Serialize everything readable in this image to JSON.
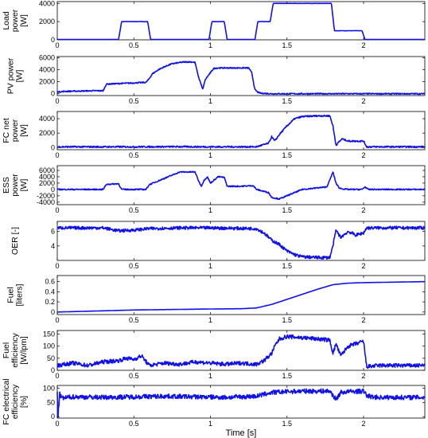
{
  "chart_data": [
    {
      "type": "line",
      "ylabel": [
        "Load",
        "power",
        "[W]"
      ],
      "xlim": [
        0,
        2.4
      ],
      "ylim": [
        0,
        4200
      ],
      "yticks": [
        0,
        2000,
        4000
      ],
      "ytick_labels": [
        "0",
        "2000",
        "4000"
      ],
      "xticks": [
        0,
        0.5,
        1,
        1.5,
        2
      ],
      "xtick_labels": [
        "0",
        "0.5",
        "1",
        "1.5",
        "2"
      ],
      "color": "#1010ee",
      "series": [
        {
          "x": [
            0,
            0.4,
            0.42,
            0.59,
            0.61,
            0.99,
            1.01,
            1.09,
            1.11,
            1.29,
            1.31,
            1.39,
            1.41,
            1.79,
            1.81,
            1.99,
            2.01,
            2.4
          ],
          "y": [
            0,
            0,
            2000,
            2000,
            0,
            0,
            2000,
            2000,
            0,
            0,
            2000,
            2000,
            4000,
            4000,
            1000,
            1000,
            0,
            0
          ]
        }
      ]
    },
    {
      "type": "line",
      "ylabel": [
        "PV power",
        "[W]"
      ],
      "xlim": [
        0,
        2.4
      ],
      "ylim": [
        -300,
        6200
      ],
      "yticks": [
        0,
        2000,
        4000,
        6000
      ],
      "ytick_labels": [
        "0",
        "2000",
        "4000",
        "6000"
      ],
      "xticks": [
        0,
        0.5,
        1,
        1.5,
        2
      ],
      "xtick_labels": [
        "0",
        "0.5",
        "1",
        "1.5",
        "2"
      ],
      "color": "#1010ee",
      "series": [
        {
          "x": [
            0,
            0.05,
            0.25,
            0.3,
            0.32,
            0.4,
            0.5,
            0.58,
            0.6,
            0.62,
            0.66,
            0.7,
            0.75,
            0.8,
            0.83,
            0.88,
            0.9,
            0.92,
            0.94,
            0.95,
            0.96,
            0.97,
            1.0,
            1.02,
            1.05,
            1.1,
            1.15,
            1.2,
            1.25,
            1.27,
            1.29,
            1.31,
            1.33,
            1.4,
            2.4
          ],
          "y": [
            300,
            400,
            500,
            500,
            1600,
            1700,
            1800,
            1900,
            2500,
            3300,
            4000,
            4500,
            5000,
            5200,
            5300,
            5300,
            5200,
            3000,
            1500,
            700,
            1800,
            2500,
            3500,
            4200,
            4300,
            4300,
            4300,
            4300,
            4300,
            3500,
            700,
            250,
            80,
            0,
            0
          ]
        }
      ]
    },
    {
      "type": "line",
      "ylabel": [
        "FC net",
        "power",
        "[W]"
      ],
      "xlim": [
        0,
        2.4
      ],
      "ylim": [
        -300,
        5000
      ],
      "yticks": [
        0,
        2000,
        4000
      ],
      "ytick_labels": [
        "0",
        "2000",
        "4000"
      ],
      "xticks": [
        0,
        0.5,
        1,
        1.5,
        2
      ],
      "xtick_labels": [
        "0",
        "0.5",
        "1",
        "1.5",
        "2"
      ],
      "color": "#1010ee",
      "series": [
        {
          "x": [
            0,
            0.5,
            0.8,
            1.0,
            1.3,
            1.38,
            1.4,
            1.42,
            1.45,
            1.5,
            1.55,
            1.6,
            1.65,
            1.7,
            1.78,
            1.8,
            1.82,
            1.84,
            1.86,
            1.9,
            1.95,
            2.0,
            2.02,
            2.1,
            2.4
          ],
          "y": [
            100,
            100,
            120,
            100,
            100,
            600,
            1500,
            900,
            1800,
            3000,
            4000,
            4300,
            4350,
            4400,
            4400,
            3000,
            300,
            800,
            1200,
            900,
            900,
            900,
            100,
            100,
            100
          ]
        }
      ]
    },
    {
      "type": "line",
      "ylabel": [
        "ESS",
        "power",
        "[W]"
      ],
      "xlim": [
        0,
        2.4
      ],
      "ylim": [
        -4800,
        7500
      ],
      "yticks": [
        -4000,
        -2000,
        0,
        2000,
        4000,
        6000
      ],
      "ytick_labels": [
        "-4000",
        "-2000",
        "0",
        "2000",
        "4000",
        "6000"
      ],
      "xticks": [
        0,
        0.5,
        1,
        1.5,
        2
      ],
      "xtick_labels": [
        "0",
        "0.5",
        "1",
        "1.5",
        "2"
      ],
      "color": "#1010ee",
      "series": [
        {
          "x": [
            0,
            0.3,
            0.32,
            0.4,
            0.42,
            0.58,
            0.6,
            0.7,
            0.8,
            0.85,
            0.9,
            0.92,
            0.94,
            0.96,
            0.98,
            1.0,
            1.05,
            1.09,
            1.11,
            1.2,
            1.28,
            1.3,
            1.38,
            1.4,
            1.45,
            1.5,
            1.55,
            1.6,
            1.7,
            1.76,
            1.78,
            1.8,
            1.82,
            1.84,
            1.86,
            1.9,
            1.95,
            1.99,
            2.01,
            2.03,
            2.05,
            2.4
          ],
          "y": [
            0,
            0,
            1600,
            1800,
            0,
            0,
            1500,
            3500,
            5500,
            5500,
            5500,
            3000,
            1000,
            3000,
            4000,
            2000,
            4000,
            3800,
            1000,
            1000,
            1200,
            0,
            -1000,
            -2500,
            -3000,
            -2000,
            -1000,
            0,
            500,
            800,
            3000,
            5500,
            2000,
            500,
            200,
            0,
            0,
            0,
            800,
            0,
            0,
            0
          ]
        }
      ]
    },
    {
      "type": "line",
      "ylabel": [
        "OER [-]"
      ],
      "xlim": [
        0,
        2.4
      ],
      "ylim": [
        2,
        7.4
      ],
      "yticks": [
        4,
        6
      ],
      "ytick_labels": [
        "4",
        "6"
      ],
      "xticks": [
        0,
        0.5,
        1,
        1.5,
        2
      ],
      "xtick_labels": [
        "0",
        "0.5",
        "1",
        "1.5",
        "2"
      ],
      "color": "#1010ee",
      "series": [
        {
          "x": [
            0,
            0.3,
            0.4,
            0.5,
            0.6,
            0.8,
            1.0,
            1.3,
            1.35,
            1.4,
            1.45,
            1.5,
            1.55,
            1.6,
            1.7,
            1.78,
            1.8,
            1.82,
            1.85,
            1.9,
            1.95,
            2.0,
            2.02,
            2.1,
            2.4
          ],
          "y": [
            6.5,
            6.5,
            6.1,
            6.2,
            6.4,
            6.5,
            6.5,
            6.4,
            5.8,
            4.8,
            4.2,
            3.3,
            2.8,
            2.5,
            2.4,
            2.4,
            4.0,
            6.2,
            5.2,
            6.0,
            5.5,
            5.8,
            6.5,
            6.5,
            6.5
          ]
        }
      ]
    },
    {
      "type": "line",
      "ylabel": [
        "Fuel",
        "[liters]"
      ],
      "xlim": [
        0,
        2.4
      ],
      "ylim": [
        -0.05,
        0.72
      ],
      "yticks": [
        0,
        0.2,
        0.4,
        0.6
      ],
      "ytick_labels": [
        "0",
        "0.2",
        "0.4",
        "0.6"
      ],
      "xticks": [
        0,
        0.5,
        1,
        1.5,
        2
      ],
      "xtick_labels": [
        "0",
        "0.5",
        "1",
        "1.5",
        "2"
      ],
      "color": "#1010ee",
      "series": [
        {
          "x": [
            0,
            0.5,
            1.0,
            1.2,
            1.3,
            1.4,
            1.5,
            1.6,
            1.7,
            1.8,
            1.9,
            2.0,
            2.4
          ],
          "y": [
            0.0,
            0.04,
            0.06,
            0.065,
            0.08,
            0.15,
            0.25,
            0.35,
            0.45,
            0.54,
            0.57,
            0.58,
            0.6
          ]
        }
      ]
    },
    {
      "type": "line",
      "ylabel": [
        "Fuel",
        "efficiency",
        "[W/lpm]"
      ],
      "xlim": [
        0,
        2.4
      ],
      "ylim": [
        0,
        165
      ],
      "yticks": [
        0,
        50,
        100,
        150
      ],
      "ytick_labels": [
        "0",
        "50",
        "100",
        "150"
      ],
      "xticks": [
        0,
        0.5,
        1,
        1.5,
        2
      ],
      "xtick_labels": [
        "0",
        "0.5",
        "1",
        "1.5",
        "2"
      ],
      "color": "#1010ee",
      "series": [
        {
          "x": [
            0,
            0.1,
            0.2,
            0.3,
            0.4,
            0.45,
            0.5,
            0.55,
            0.6,
            0.7,
            0.8,
            0.9,
            1.0,
            1.1,
            1.2,
            1.3,
            1.35,
            1.4,
            1.42,
            1.45,
            1.5,
            1.6,
            1.7,
            1.78,
            1.8,
            1.82,
            1.85,
            1.9,
            1.95,
            2.0,
            2.02,
            2.1,
            2.4
          ],
          "y": [
            20,
            30,
            20,
            35,
            40,
            50,
            45,
            60,
            20,
            30,
            25,
            35,
            30,
            25,
            30,
            25,
            40,
            70,
            100,
            130,
            140,
            135,
            130,
            125,
            70,
            110,
            60,
            100,
            110,
            120,
            15,
            20,
            20
          ]
        }
      ]
    },
    {
      "type": "line",
      "ylabel": [
        "FC electrical",
        "efficiency",
        "[%]"
      ],
      "xlim": [
        0,
        2.4
      ],
      "ylim": [
        -5,
        110
      ],
      "yticks": [
        0,
        50,
        100
      ],
      "ytick_labels": [
        "0",
        "50",
        "100"
      ],
      "xticks": [
        0,
        0.5,
        1,
        1.5,
        2
      ],
      "xtick_labels": [
        "0",
        "0.5",
        "1",
        "1.5",
        "2"
      ],
      "xlabel": "Time [s]",
      "color": "#1010ee",
      "series": [
        {
          "x": [
            0,
            0.005,
            0.015,
            0.03,
            0.1,
            0.3,
            0.5,
            0.7,
            0.9,
            1.1,
            1.3,
            1.4,
            1.5,
            1.6,
            1.7,
            1.78,
            1.8,
            1.82,
            1.85,
            1.9,
            2.0,
            2.02,
            2.05,
            2.1,
            2.4
          ],
          "y": [
            90,
            0,
            80,
            65,
            70,
            68,
            70,
            72,
            70,
            68,
            72,
            85,
            88,
            90,
            90,
            90,
            75,
            60,
            85,
            88,
            90,
            75,
            70,
            68,
            68
          ]
        }
      ]
    }
  ]
}
